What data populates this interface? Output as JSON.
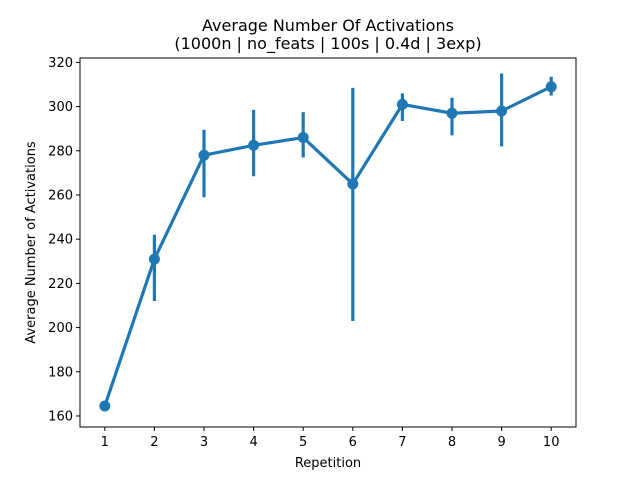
{
  "chart_data": {
    "type": "line",
    "title": "Average Number Of Activations",
    "subtitle": "(1000n | no_feats | 100s | 0.4d | 3exp)",
    "xlabel": "Repetition",
    "ylabel": "Average Number of Activations",
    "categories": [
      "1",
      "2",
      "3",
      "4",
      "5",
      "6",
      "7",
      "8",
      "9",
      "10"
    ],
    "series": [
      {
        "values": [
          164.5,
          231,
          278,
          282.5,
          286,
          265,
          301,
          297,
          298,
          309
        ],
        "error_low": [
          163,
          212,
          259,
          268.5,
          277,
          203,
          293.5,
          287,
          282,
          305
        ],
        "error_high": [
          166,
          242,
          289.5,
          298.5,
          297.5,
          308.5,
          306,
          304,
          315,
          313.5
        ]
      }
    ],
    "ylim": [
      155,
      322
    ],
    "yticks": [
      160,
      180,
      200,
      220,
      240,
      260,
      280,
      300,
      320
    ],
    "grid": false,
    "color": "#1f77b4"
  }
}
